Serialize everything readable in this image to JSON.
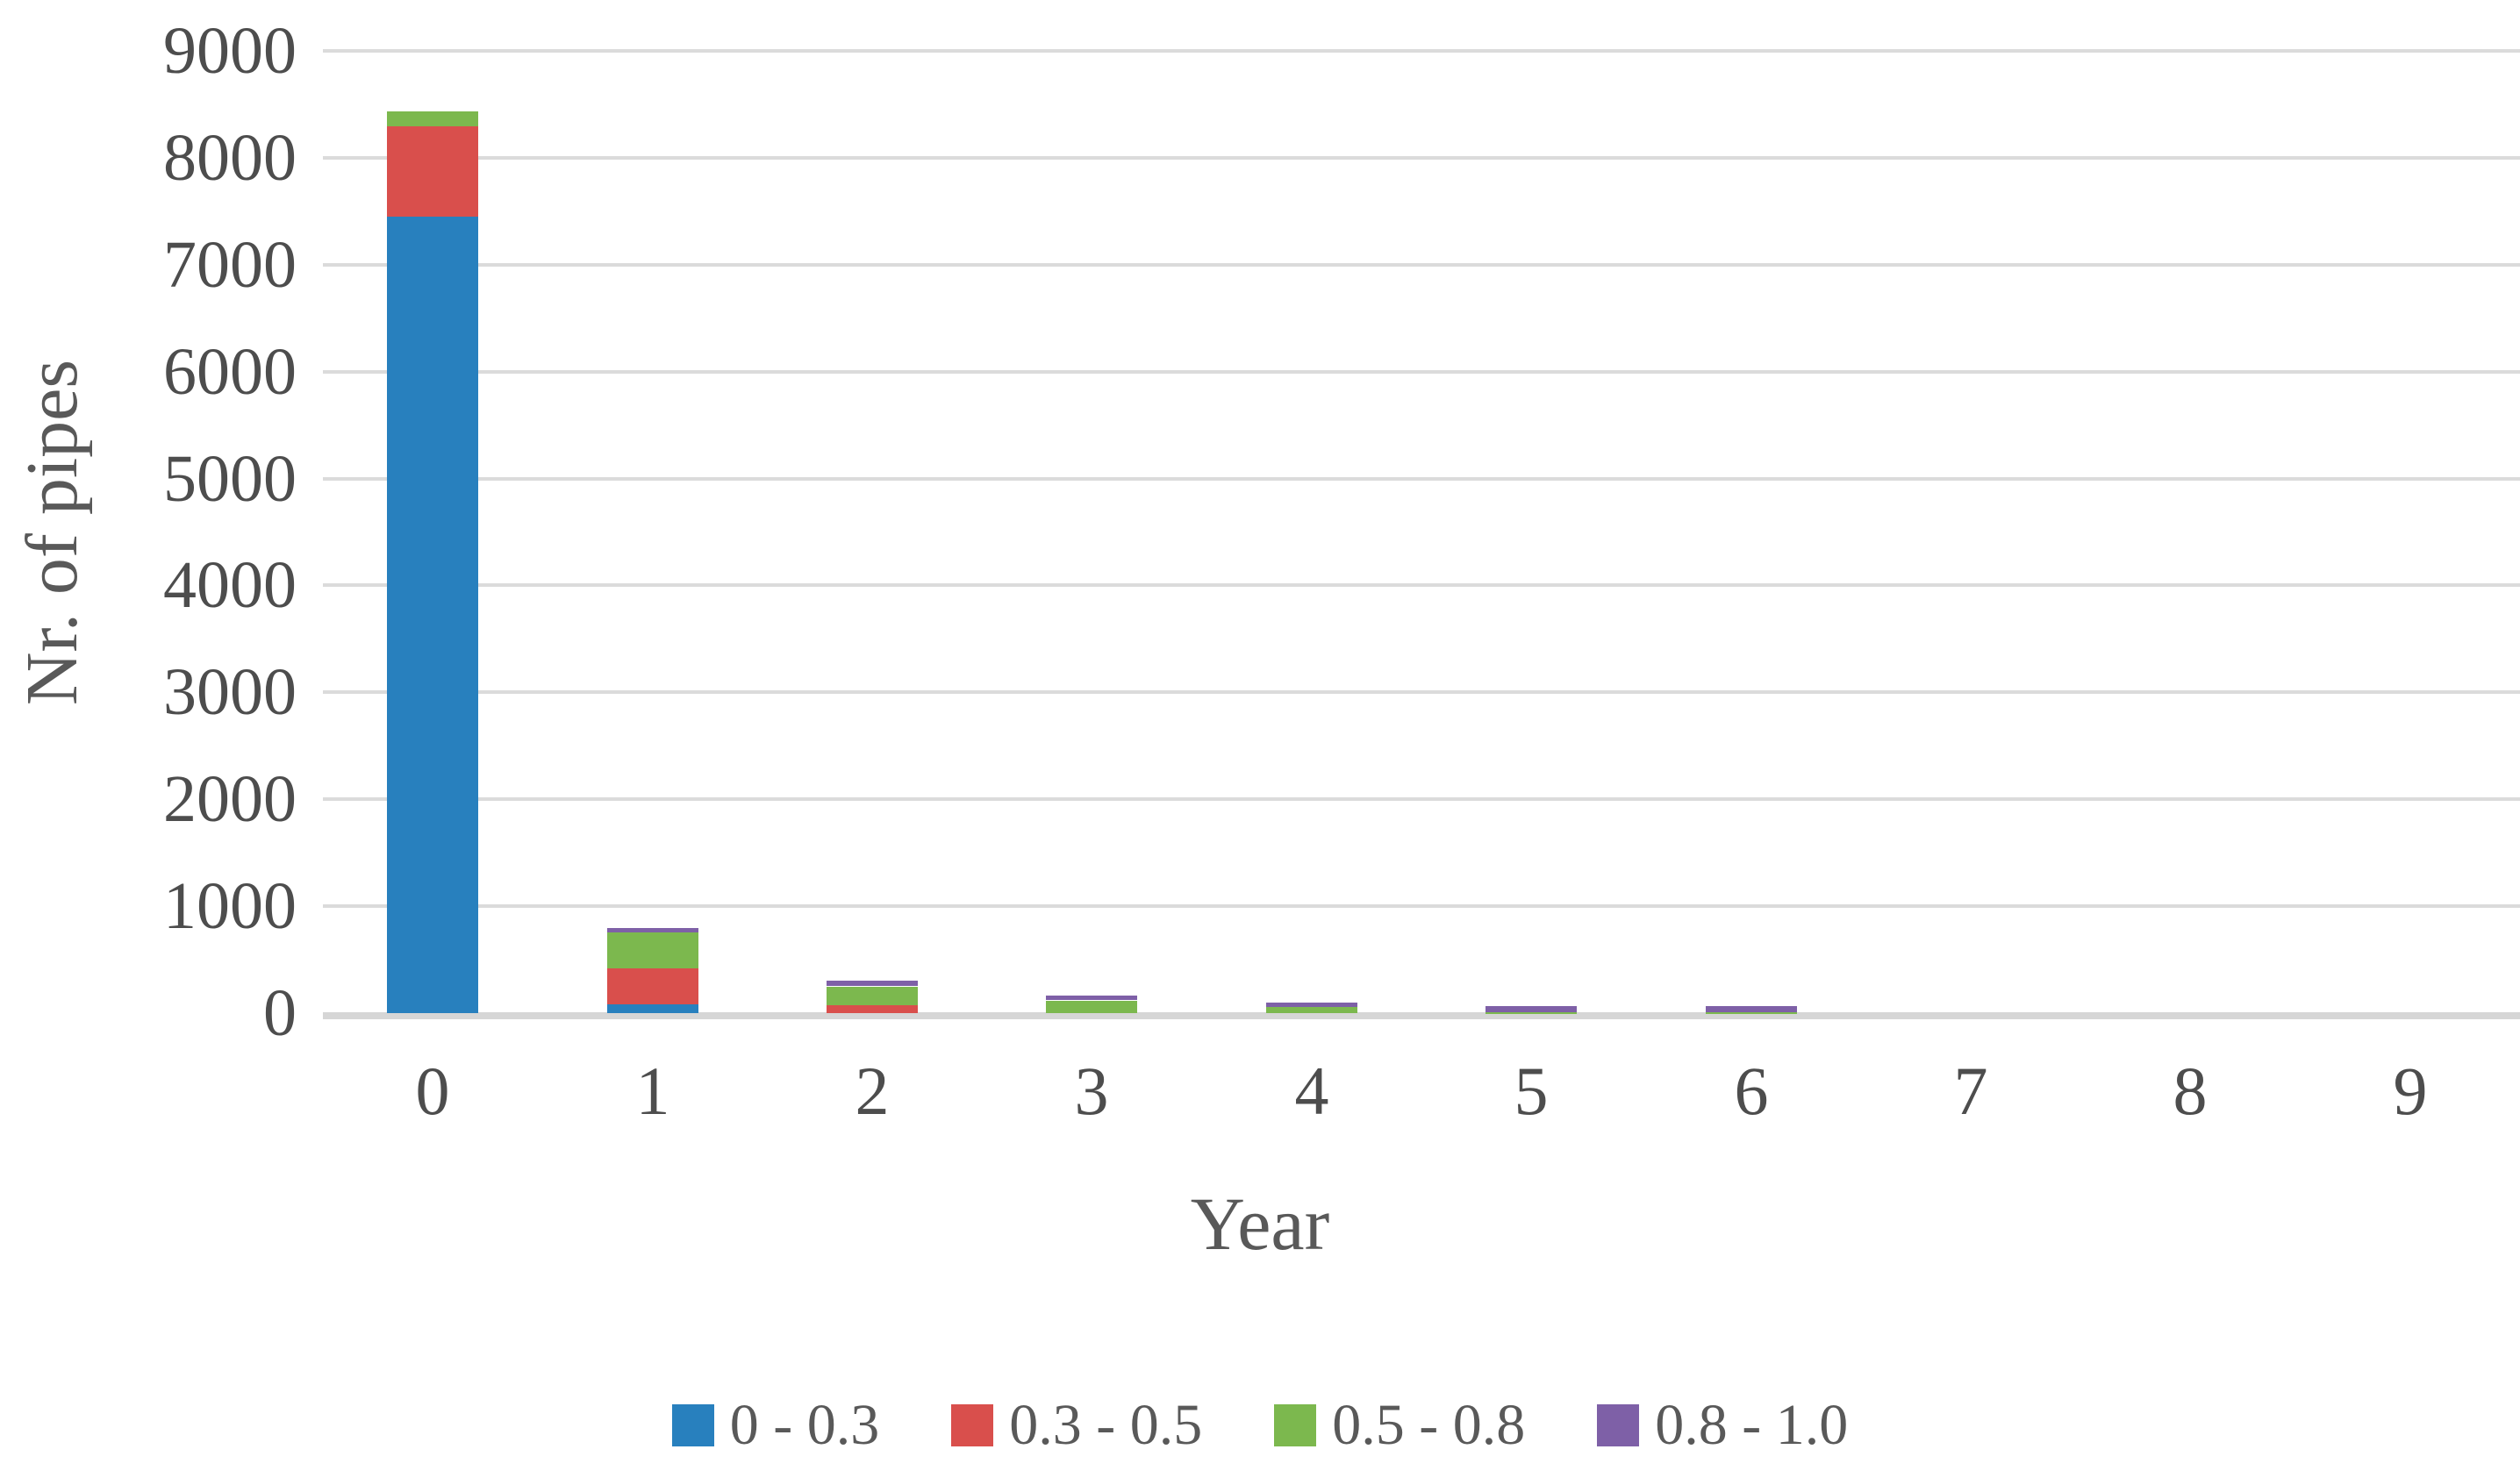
{
  "chart_data": {
    "type": "bar",
    "stacked": true,
    "title": "",
    "xlabel": "Year",
    "ylabel": "Nr. of pipes",
    "categories": [
      "0",
      "1",
      "2",
      "3",
      "4",
      "5",
      "6",
      "7",
      "8",
      "9"
    ],
    "series": [
      {
        "name": "0 - 0.3",
        "color": "#2880be",
        "values": [
          7450,
          80,
          0,
          0,
          0,
          0,
          0,
          0,
          0,
          0
        ]
      },
      {
        "name": "0.3 - 0.5",
        "color": "#d94f4c",
        "values": [
          845,
          340,
          80,
          0,
          0,
          0,
          0,
          0,
          0,
          0
        ]
      },
      {
        "name": "0.5 - 0.8",
        "color": "#7cb84e",
        "values": [
          140,
          335,
          170,
          115,
          55,
          10,
          10,
          0,
          0,
          0
        ]
      },
      {
        "name": "0.8 - 1.0",
        "color": "#7e60a7",
        "values": [
          0,
          40,
          50,
          45,
          40,
          55,
          55,
          0,
          0,
          0
        ]
      }
    ],
    "stack_totals": [
      8435,
      795,
      300,
      160,
      95,
      65,
      65,
      0,
      0,
      0
    ],
    "ylim": [
      0,
      9000
    ],
    "yticks": [
      0,
      1000,
      2000,
      3000,
      4000,
      5000,
      6000,
      7000,
      8000,
      9000
    ],
    "grid": true,
    "legend_position": "bottom",
    "gridline_color": "#dbdbdb",
    "axis_line_color": "#d6d6d6",
    "tick_text_color": "#4d4d4d",
    "axis_title_color": "#595959",
    "background_color": "#ffffff"
  }
}
